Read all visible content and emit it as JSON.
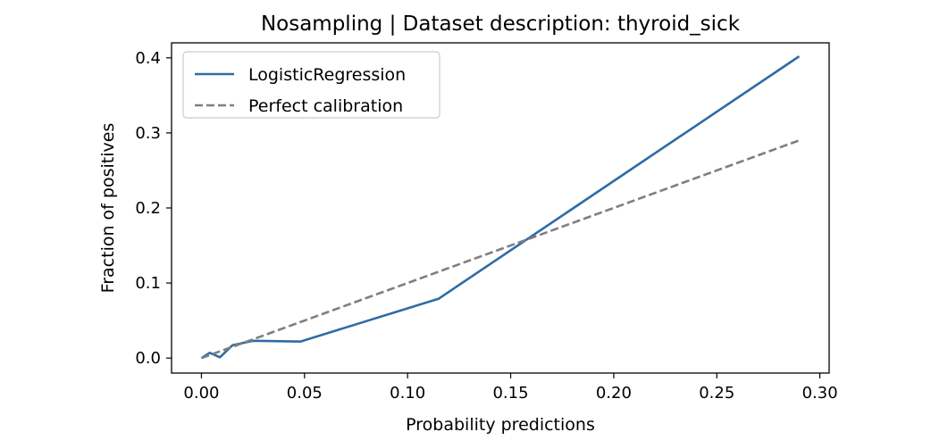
{
  "chart_data": {
    "type": "line",
    "title": "Nosampling | Dataset description: thyroid_sick",
    "xlabel": "Probability predictions",
    "ylabel": "Fraction of positives",
    "xlim": [
      -0.0145,
      0.3045
    ],
    "ylim": [
      -0.02,
      0.42
    ],
    "xticks": [
      0.0,
      0.05,
      0.1,
      0.15,
      0.2,
      0.25,
      0.3
    ],
    "xtick_labels": [
      "0.00",
      "0.05",
      "0.10",
      "0.15",
      "0.20",
      "0.25",
      "0.30"
    ],
    "yticks": [
      0.0,
      0.1,
      0.2,
      0.3,
      0.4
    ],
    "ytick_labels": [
      "0.0",
      "0.1",
      "0.2",
      "0.3",
      "0.4"
    ],
    "grid": false,
    "legend_position": "top-left",
    "series": [
      {
        "name": "LogisticRegression",
        "color": "#2f6ca3",
        "style": "solid",
        "x": [
          0.0,
          0.004,
          0.009,
          0.015,
          0.025,
          0.048,
          0.115,
          0.29
        ],
        "y": [
          0.0,
          0.007,
          0.001,
          0.017,
          0.023,
          0.022,
          0.079,
          0.402
        ]
      },
      {
        "name": "Perfect calibration",
        "color": "#7f7f7f",
        "style": "dashed",
        "x": [
          0.0,
          0.29
        ],
        "y": [
          0.0,
          0.29
        ]
      }
    ]
  }
}
